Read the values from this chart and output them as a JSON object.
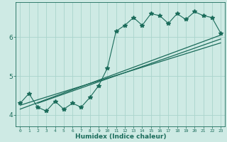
{
  "title": "",
  "xlabel": "Humidex (Indice chaleur)",
  "ylabel": "",
  "bg_color": "#ceeae4",
  "line_color": "#1a6b5a",
  "grid_color": "#aad4cc",
  "xlim": [
    -0.5,
    23.5
  ],
  "ylim": [
    3.7,
    6.9
  ],
  "x_ticks": [
    0,
    1,
    2,
    3,
    4,
    5,
    6,
    7,
    8,
    9,
    10,
    11,
    12,
    13,
    14,
    15,
    16,
    17,
    18,
    19,
    20,
    21,
    22,
    23
  ],
  "y_ticks": [
    4,
    5,
    6
  ],
  "jagged_x": [
    0,
    1,
    2,
    3,
    4,
    5,
    6,
    7,
    8,
    9,
    10,
    11,
    12,
    13,
    14,
    15,
    16,
    17,
    18,
    19,
    20,
    21,
    22,
    23
  ],
  "jagged_y": [
    4.3,
    4.55,
    4.2,
    4.1,
    4.35,
    4.15,
    4.3,
    4.2,
    4.45,
    4.75,
    5.2,
    6.15,
    6.3,
    6.5,
    6.3,
    6.6,
    6.55,
    6.35,
    6.6,
    6.45,
    6.65,
    6.55,
    6.5,
    6.1
  ],
  "line1_x": [
    0,
    23
  ],
  "line1_y": [
    4.15,
    6.05
  ],
  "line2_x": [
    0,
    23
  ],
  "line2_y": [
    4.25,
    5.85
  ],
  "line3_x": [
    2,
    23
  ],
  "line3_y": [
    4.3,
    5.95
  ]
}
